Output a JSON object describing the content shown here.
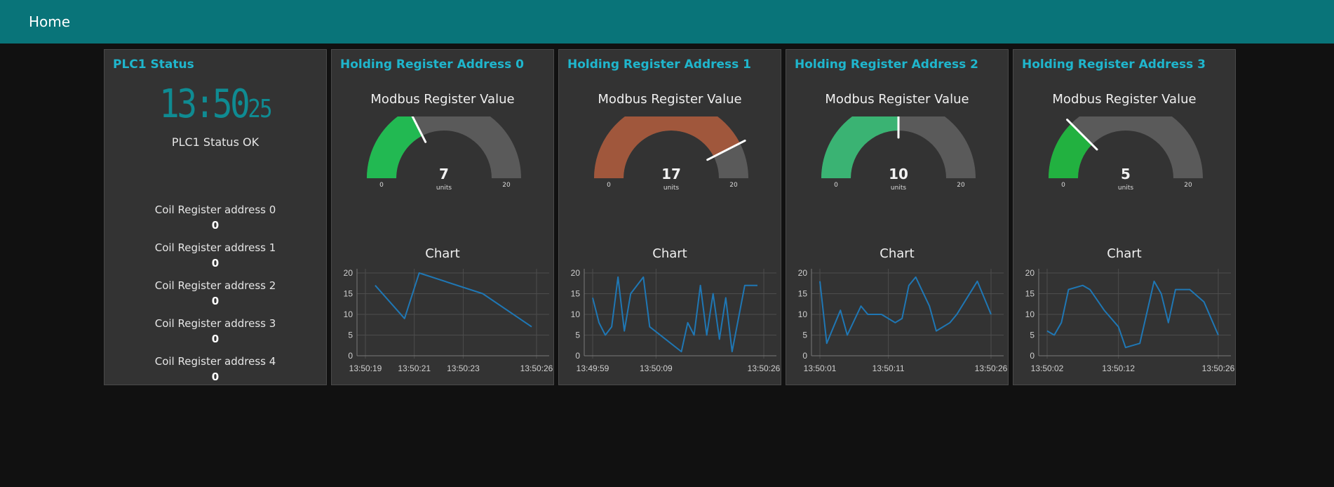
{
  "header": {
    "title": "Home"
  },
  "plc": {
    "title": "PLC1 Status",
    "clock": {
      "main": "13:50",
      "seconds": "25"
    },
    "status_text": "PLC1 Status OK",
    "coils": [
      {
        "label": "Coil Register address 0",
        "value": "0"
      },
      {
        "label": "Coil Register address 1",
        "value": "0"
      },
      {
        "label": "Coil Register address 2",
        "value": "0"
      },
      {
        "label": "Coil Register address 3",
        "value": "0"
      },
      {
        "label": "Coil Register address 4",
        "value": "0"
      }
    ]
  },
  "registers": [
    {
      "title": "Holding Register Address 0",
      "gauge": {
        "title": "Modbus Register Value",
        "value": 7,
        "display": "7",
        "min": 0,
        "max": 20,
        "min_label": "0",
        "max_label": "20",
        "units": "units",
        "color": "#22b952"
      },
      "chart": {
        "title": "Chart"
      }
    },
    {
      "title": "Holding Register Address 1",
      "gauge": {
        "title": "Modbus Register Value",
        "value": 17,
        "display": "17",
        "min": 0,
        "max": 20,
        "min_label": "0",
        "max_label": "20",
        "units": "units",
        "color": "#a0573c"
      },
      "chart": {
        "title": "Chart"
      }
    },
    {
      "title": "Holding Register Address 2",
      "gauge": {
        "title": "Modbus Register Value",
        "value": 10,
        "display": "10",
        "min": 0,
        "max": 20,
        "min_label": "0",
        "max_label": "20",
        "units": "units",
        "color": "#3ab373"
      },
      "chart": {
        "title": "Chart"
      }
    },
    {
      "title": "Holding Register Address 3",
      "gauge": {
        "title": "Modbus Register Value",
        "value": 5,
        "display": "5",
        "min": 0,
        "max": 20,
        "min_label": "0",
        "max_label": "20",
        "units": "units",
        "color": "#22b140"
      },
      "chart": {
        "title": "Chart"
      }
    }
  ],
  "colors": {
    "header_bg": "#097479",
    "card_title": "#1fb6cd",
    "gauge_track": "#5a5a5a",
    "line": "#1f77b4"
  },
  "chart_data": [
    {
      "type": "line",
      "title": "Chart",
      "ylim": [
        0,
        20
      ],
      "yticks": [
        "0",
        "5",
        "10",
        "15",
        "20"
      ],
      "x": [
        "13:50:19.4",
        "13:50:20.6",
        "13:50:21.2",
        "13:50:23.8",
        "13:50:25.8"
      ],
      "xticks": [
        "13:50:19",
        "13:50:21",
        "13:50:23",
        "13:50:26"
      ],
      "values": [
        17,
        9,
        20,
        15,
        7
      ],
      "grid": true
    },
    {
      "type": "line",
      "title": "Chart",
      "ylim": [
        0,
        20
      ],
      "yticks": [
        "0",
        "5",
        "10",
        "15",
        "20"
      ],
      "x": [
        "13:49:59",
        "13:50:00",
        "13:50:01",
        "13:50:02",
        "13:50:03",
        "13:50:04",
        "13:50:05",
        "13:50:07",
        "13:50:08",
        "13:50:13",
        "13:50:14",
        "13:50:15",
        "13:50:16",
        "13:50:17",
        "13:50:18",
        "13:50:19",
        "13:50:20",
        "13:50:21",
        "13:50:23",
        "13:50:24",
        "13:50:25"
      ],
      "xticks": [
        "13:49:59",
        "13:50:09",
        "13:50:26"
      ],
      "values": [
        14,
        8,
        5,
        7,
        19,
        6,
        15,
        19,
        7,
        1,
        8,
        5,
        17,
        5,
        15,
        4,
        14,
        1,
        17,
        17,
        17
      ],
      "grid": true
    },
    {
      "type": "line",
      "title": "Chart",
      "ylim": [
        0,
        20
      ],
      "yticks": [
        "0",
        "5",
        "10",
        "15",
        "20"
      ],
      "x": [
        "13:50:01",
        "13:50:02",
        "13:50:04",
        "13:50:05",
        "13:50:07",
        "13:50:08",
        "13:50:10",
        "13:50:12",
        "13:50:13",
        "13:50:14",
        "13:50:15",
        "13:50:17",
        "13:50:18",
        "13:50:20",
        "13:50:21",
        "13:50:24",
        "13:50:26"
      ],
      "xticks": [
        "13:50:01",
        "13:50:11",
        "13:50:26"
      ],
      "values": [
        18,
        3,
        11,
        5,
        12,
        10,
        10,
        8,
        9,
        17,
        19,
        12,
        6,
        8,
        10,
        18,
        10
      ],
      "grid": true
    },
    {
      "type": "line",
      "title": "Chart",
      "ylim": [
        0,
        20
      ],
      "yticks": [
        "0",
        "5",
        "10",
        "15",
        "20"
      ],
      "x": [
        "13:50:02",
        "13:50:03",
        "13:50:04",
        "13:50:05",
        "13:50:07",
        "13:50:08",
        "13:50:10",
        "13:50:11",
        "13:50:12",
        "13:50:13",
        "13:50:15",
        "13:50:17",
        "13:50:18",
        "13:50:19",
        "13:50:20",
        "13:50:22",
        "13:50:24",
        "13:50:26"
      ],
      "xticks": [
        "13:50:02",
        "13:50:12",
        "13:50:26"
      ],
      "values": [
        6,
        5,
        8,
        16,
        17,
        16,
        11,
        9,
        7,
        2,
        3,
        18,
        15,
        8,
        16,
        16,
        13,
        5
      ],
      "grid": true
    }
  ]
}
